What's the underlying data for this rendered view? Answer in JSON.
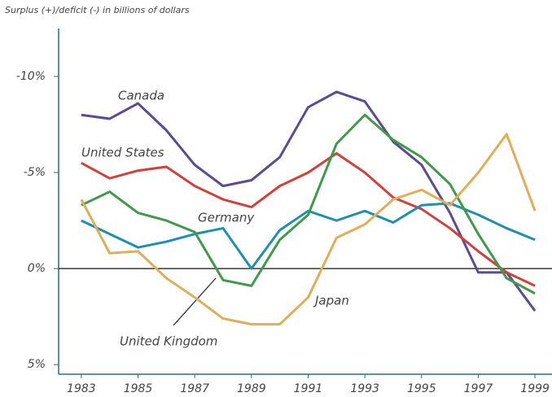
{
  "chart_data": {
    "type": "line",
    "subtitle": "Surplus (+)/deficit (-) in billions of dollars",
    "x": [
      1983,
      1984,
      1985,
      1986,
      1987,
      1988,
      1989,
      1990,
      1991,
      1992,
      1993,
      1994,
      1995,
      1996,
      1997,
      1998,
      1999
    ],
    "xlim": [
      1982.2,
      1999.6
    ],
    "xticks": [
      1983,
      1985,
      1987,
      1989,
      1991,
      1993,
      1995,
      1997,
      1999
    ],
    "ylim": [
      5.5,
      -12.5
    ],
    "yticks": [
      {
        "value": -10,
        "label": "-10%"
      },
      {
        "value": -5,
        "label": "-5%"
      },
      {
        "value": 0,
        "label": "0%"
      },
      {
        "value": 5,
        "label": "5%"
      }
    ],
    "grid": false,
    "series": [
      {
        "name": "Canada",
        "color": "#5b4b96",
        "values": [
          -8.0,
          -7.8,
          -8.6,
          -7.2,
          -5.4,
          -4.3,
          -4.6,
          -5.8,
          -8.4,
          -9.2,
          -8.7,
          -6.6,
          -5.4,
          -2.9,
          0.2,
          0.2,
          2.2
        ]
      },
      {
        "name": "United States",
        "color": "#d2403c",
        "values": [
          -5.5,
          -4.7,
          -5.1,
          -5.3,
          -4.3,
          -3.6,
          -3.2,
          -4.3,
          -5.0,
          -6.0,
          -5.0,
          -3.7,
          -3.1,
          -2.1,
          -0.9,
          0.2,
          0.9
        ]
      },
      {
        "name": "Germany",
        "color": "#1e8fb0",
        "values": [
          -2.5,
          -1.8,
          -1.1,
          -1.4,
          -1.8,
          -2.1,
          0,
          -2.0,
          -3.0,
          -2.5,
          -3.0,
          -2.4,
          -3.3,
          -3.4,
          -2.8,
          -2.1,
          -1.5
        ]
      },
      {
        "name": "United Kingdom",
        "color": "#3f9a4a",
        "values": [
          -3.3,
          -4.0,
          -2.9,
          -2.5,
          -1.9,
          0.6,
          0.9,
          -1.5,
          -2.8,
          -6.5,
          -8.0,
          -6.7,
          -5.8,
          -4.4,
          -1.8,
          0.5,
          1.3
        ]
      },
      {
        "name": "Japan",
        "color": "#e0ae57",
        "values": [
          -3.6,
          -0.8,
          -0.9,
          0.5,
          1.5,
          2.6,
          2.9,
          2.9,
          1.5,
          -1.6,
          -2.3,
          -3.6,
          -4.1,
          -3.3,
          -5.0,
          -7.0,
          -3.0
        ]
      }
    ]
  }
}
